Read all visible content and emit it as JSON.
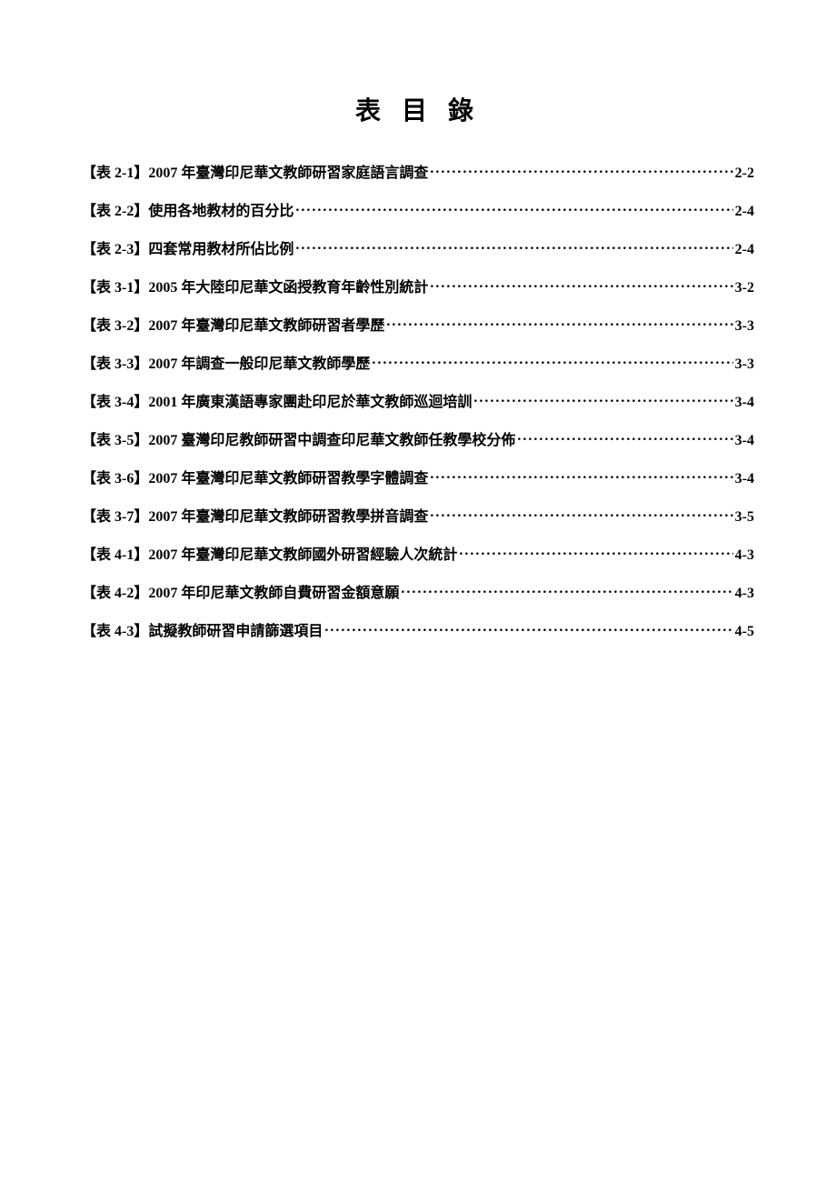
{
  "title": "表 目 錄",
  "entries": [
    {
      "label": "【表 2-1】2007 年臺灣印尼華文教師研習家庭語言調查",
      "page": "2-2"
    },
    {
      "label": "【表 2-2】使用各地教材的百分比",
      "page": "2-4"
    },
    {
      "label": "【表 2-3】四套常用教材所佔比例",
      "page": "2-4"
    },
    {
      "label": "【表 3-1】2005 年大陸印尼華文函授教育年齡性別統計",
      "page": "3-2"
    },
    {
      "label": "【表 3-2】2007 年臺灣印尼華文教師研習者學歷",
      "page": "3-3"
    },
    {
      "label": "【表 3-3】2007 年調查一般印尼華文教師學歷",
      "page": "3-3"
    },
    {
      "label": "【表 3-4】2001 年廣東漢語專家團赴印尼於華文教師巡迴培訓",
      "page": "3-4"
    },
    {
      "label": "【表 3-5】2007 臺灣印尼教師研習中調查印尼華文教師任教學校分佈",
      "page": "3-4"
    },
    {
      "label": "【表 3-6】2007 年臺灣印尼華文教師研習教學字體調查",
      "page": "3-4"
    },
    {
      "label": "【表 3-7】2007 年臺灣印尼華文教師研習教學拼音調查",
      "page": "3-5"
    },
    {
      "label": "【表 4-1】2007 年臺灣印尼華文教師國外研習經驗人次統計",
      "page": "4-3"
    },
    {
      "label": "【表 4-2】2007 年印尼華文教師自費研習金額意願",
      "page": "4-3"
    },
    {
      "label": "【表 4-3】試擬教師研習申請篩選項目",
      "page": "4-5"
    }
  ]
}
